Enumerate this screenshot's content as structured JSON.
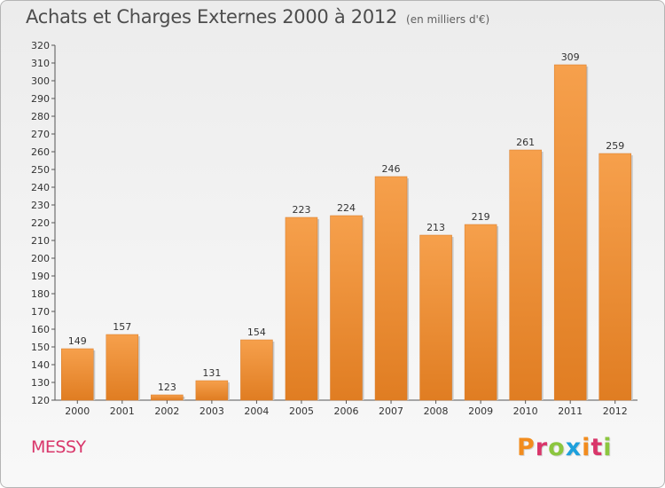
{
  "header": {
    "title": "Achats et Charges Externes 2000 à 2012",
    "subtitle": "(en milliers d'€)"
  },
  "footer": {
    "town": "MESSY",
    "brand": "Proxiti",
    "brand_colors": [
      "#f28c1e",
      "#d9366a",
      "#8cc63f",
      "#1ea0dc",
      "#f28c1e",
      "#d9366a",
      "#8cc63f"
    ]
  },
  "chart_data": {
    "type": "bar",
    "title": "Achats et Charges Externes 2000 à 2012",
    "subtitle": "(en milliers d'€)",
    "categories": [
      "2000",
      "2001",
      "2002",
      "2003",
      "2004",
      "2005",
      "2006",
      "2007",
      "2008",
      "2009",
      "2010",
      "2011",
      "2012"
    ],
    "values": [
      149,
      157,
      123,
      131,
      154,
      223,
      224,
      246,
      213,
      219,
      261,
      309,
      259
    ],
    "ylim": [
      120,
      320
    ],
    "ytick_step": 10,
    "grid": false,
    "bar_color_top": "#f6a04c",
    "bar_color_bottom": "#e07d22",
    "xlabel": "",
    "ylabel": ""
  }
}
